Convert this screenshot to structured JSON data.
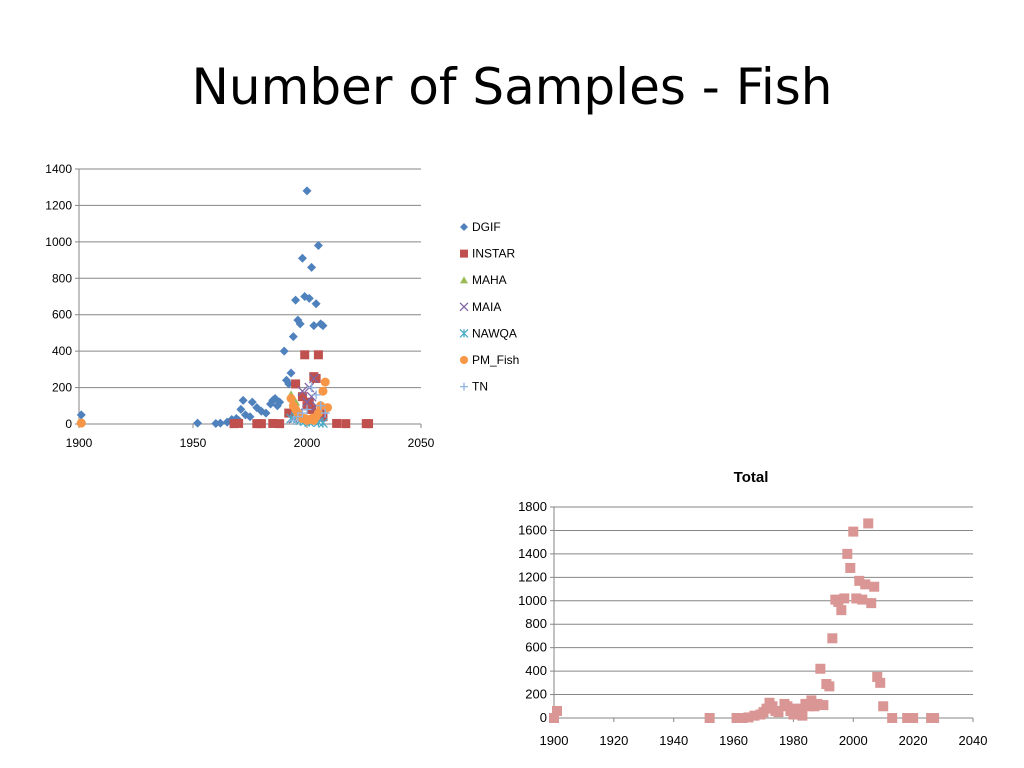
{
  "slide": {
    "title": "Number of Samples - Fish"
  },
  "chart_data": [
    {
      "type": "scatter",
      "title": "",
      "xlabel": "",
      "ylabel": "",
      "xlim": [
        1900,
        2050
      ],
      "ylim": [
        0,
        1400
      ],
      "xticks": [
        1900,
        1950,
        2000,
        2050
      ],
      "yticks": [
        0,
        200,
        400,
        600,
        800,
        1000,
        1200,
        1400
      ],
      "grid": "horizontal",
      "legend": "right",
      "series": [
        {
          "name": "DGIF",
          "color": "#4f81bd",
          "marker": "diamond",
          "points": [
            [
              1901,
              50
            ],
            [
              1901,
              10
            ],
            [
              1952,
              5
            ],
            [
              1960,
              3
            ],
            [
              1962,
              5
            ],
            [
              1965,
              10
            ],
            [
              1967,
              25
            ],
            [
              1969,
              30
            ],
            [
              1970,
              20
            ],
            [
              1971,
              80
            ],
            [
              1972,
              130
            ],
            [
              1973,
              50
            ],
            [
              1975,
              40
            ],
            [
              1976,
              120
            ],
            [
              1978,
              90
            ],
            [
              1980,
              70
            ],
            [
              1982,
              60
            ],
            [
              1984,
              110
            ],
            [
              1985,
              130
            ],
            [
              1986,
              140
            ],
            [
              1987,
              100
            ],
            [
              1988,
              120
            ],
            [
              1990,
              400
            ],
            [
              1991,
              240
            ],
            [
              1992,
              220
            ],
            [
              1993,
              280
            ],
            [
              1994,
              480
            ],
            [
              1995,
              680
            ],
            [
              1996,
              570
            ],
            [
              1997,
              550
            ],
            [
              1998,
              910
            ],
            [
              1999,
              700
            ],
            [
              2000,
              1280
            ],
            [
              2001,
              690
            ],
            [
              2002,
              860
            ],
            [
              2003,
              540
            ],
            [
              2004,
              660
            ],
            [
              2005,
              980
            ],
            [
              2006,
              550
            ],
            [
              2007,
              540
            ]
          ]
        },
        {
          "name": "INSTAR",
          "color": "#c0504d",
          "marker": "square",
          "points": [
            [
              1968,
              2
            ],
            [
              1970,
              3
            ],
            [
              1978,
              2
            ],
            [
              1980,
              2
            ],
            [
              1985,
              3
            ],
            [
              1988,
              2
            ],
            [
              1992,
              60
            ],
            [
              1995,
              220
            ],
            [
              1998,
              150
            ],
            [
              1999,
              380
            ],
            [
              2000,
              100
            ],
            [
              2001,
              120
            ],
            [
              2002,
              80
            ],
            [
              2003,
              260
            ],
            [
              2004,
              250
            ],
            [
              2005,
              380
            ],
            [
              2006,
              60
            ],
            [
              2007,
              40
            ],
            [
              2013,
              3
            ],
            [
              2017,
              2
            ],
            [
              2026,
              2
            ],
            [
              2027,
              2
            ]
          ]
        },
        {
          "name": "MAHA",
          "color": "#9bbb59",
          "marker": "triangle",
          "points": [
            [
              1993,
              160
            ],
            [
              1995,
              120
            ],
            [
              1996,
              60
            ],
            [
              1998,
              40
            ],
            [
              2000,
              30
            ],
            [
              2002,
              20
            ]
          ]
        },
        {
          "name": "MAIA",
          "color": "#8064a2",
          "marker": "x",
          "points": [
            [
              1994,
              30
            ],
            [
              1996,
              60
            ],
            [
              1998,
              180
            ],
            [
              2000,
              120
            ],
            [
              2001,
              200
            ],
            [
              2002,
              150
            ],
            [
              2003,
              250
            ],
            [
              2004,
              100
            ],
            [
              2005,
              50
            ],
            [
              2006,
              20
            ]
          ]
        },
        {
          "name": "NAWQA",
          "color": "#4bacc6",
          "marker": "star",
          "points": [
            [
              1993,
              30
            ],
            [
              1995,
              40
            ],
            [
              1997,
              20
            ],
            [
              1999,
              15
            ],
            [
              2001,
              10
            ],
            [
              2003,
              20
            ],
            [
              2005,
              10
            ],
            [
              2007,
              5
            ]
          ]
        },
        {
          "name": "PM_Fish",
          "color": "#f79646",
          "marker": "circle",
          "points": [
            [
              1901,
              5
            ],
            [
              1993,
              140
            ],
            [
              1994,
              100
            ],
            [
              1995,
              80
            ],
            [
              1996,
              60
            ],
            [
              1997,
              40
            ],
            [
              1998,
              30
            ],
            [
              1999,
              30
            ],
            [
              2000,
              20
            ],
            [
              2001,
              25
            ],
            [
              2002,
              30
            ],
            [
              2003,
              20
            ],
            [
              2004,
              40
            ],
            [
              2005,
              60
            ],
            [
              2006,
              100
            ],
            [
              2007,
              180
            ],
            [
              2008,
              230
            ],
            [
              2009,
              90
            ]
          ]
        },
        {
          "name": "TN",
          "color": "#8eb4e3",
          "marker": "plus",
          "points": [
            [
              1994,
              20
            ],
            [
              1996,
              40
            ],
            [
              1998,
              60
            ],
            [
              2000,
              80
            ],
            [
              2002,
              200
            ],
            [
              2004,
              160
            ],
            [
              2006,
              100
            ],
            [
              2008,
              60
            ]
          ]
        }
      ]
    },
    {
      "type": "scatter",
      "title": "Total",
      "xlabel": "",
      "ylabel": "",
      "xlim": [
        1900,
        2040
      ],
      "ylim": [
        0,
        1800
      ],
      "xticks": [
        1900,
        1920,
        1940,
        1960,
        1980,
        2000,
        2020,
        2040
      ],
      "yticks": [
        0,
        200,
        400,
        600,
        800,
        1000,
        1200,
        1400,
        1600,
        1800
      ],
      "grid": "horizontal",
      "legend": "none",
      "series": [
        {
          "color": "#d99694",
          "marker": "square",
          "points": [
            [
              1900,
              0
            ],
            [
              1901,
              60
            ],
            [
              1952,
              0
            ],
            [
              1961,
              0
            ],
            [
              1963,
              0
            ],
            [
              1965,
              5
            ],
            [
              1967,
              20
            ],
            [
              1969,
              30
            ],
            [
              1970,
              50
            ],
            [
              1971,
              80
            ],
            [
              1972,
              130
            ],
            [
              1973,
              100
            ],
            [
              1974,
              60
            ],
            [
              1975,
              50
            ],
            [
              1977,
              120
            ],
            [
              1978,
              100
            ],
            [
              1979,
              60
            ],
            [
              1980,
              30
            ],
            [
              1981,
              80
            ],
            [
              1982,
              60
            ],
            [
              1983,
              20
            ],
            [
              1984,
              120
            ],
            [
              1985,
              100
            ],
            [
              1986,
              150
            ],
            [
              1987,
              100
            ],
            [
              1988,
              120
            ],
            [
              1989,
              420
            ],
            [
              1990,
              110
            ],
            [
              1991,
              290
            ],
            [
              1992,
              270
            ],
            [
              1993,
              680
            ],
            [
              1994,
              1010
            ],
            [
              1995,
              990
            ],
            [
              1996,
              920
            ],
            [
              1997,
              1020
            ],
            [
              1998,
              1400
            ],
            [
              1999,
              1280
            ],
            [
              2000,
              1590
            ],
            [
              2001,
              1020
            ],
            [
              2002,
              1170
            ],
            [
              2003,
              1010
            ],
            [
              2004,
              1140
            ],
            [
              2005,
              1660
            ],
            [
              2006,
              980
            ],
            [
              2007,
              1120
            ],
            [
              2008,
              350
            ],
            [
              2009,
              300
            ],
            [
              2010,
              100
            ],
            [
              2013,
              0
            ],
            [
              2018,
              0
            ],
            [
              2020,
              0
            ],
            [
              2026,
              0
            ],
            [
              2027,
              0
            ]
          ]
        }
      ]
    }
  ]
}
